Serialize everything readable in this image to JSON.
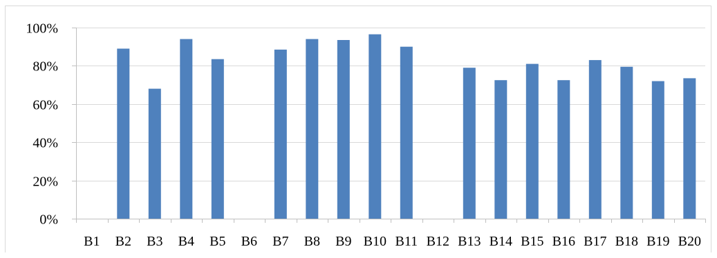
{
  "chart_data": {
    "type": "bar",
    "title": "",
    "xlabel": "",
    "ylabel": "",
    "categories": [
      "B1",
      "B2",
      "B3",
      "B4",
      "B5",
      "B6",
      "B7",
      "B8",
      "B9",
      "B10",
      "B11",
      "B12",
      "B13",
      "B14",
      "B15",
      "B16",
      "B17",
      "B18",
      "B19",
      "B20"
    ],
    "values": [
      0,
      89,
      68,
      94,
      83.5,
      0,
      88.5,
      94,
      93.5,
      96.5,
      90,
      0,
      79,
      72.5,
      81,
      72.5,
      83,
      79.5,
      72,
      73.5
    ],
    "ylim": [
      0,
      100
    ],
    "yticks": [
      0,
      20,
      40,
      60,
      80,
      100
    ],
    "ytick_labels": [
      "0%",
      "20%",
      "40%",
      "60%",
      "80%",
      "100%"
    ],
    "grid": true,
    "legend": "none",
    "bar_color": "#4f81bd",
    "grid_color": "#d9d9d9",
    "axis_color": "#bfbfbf"
  }
}
